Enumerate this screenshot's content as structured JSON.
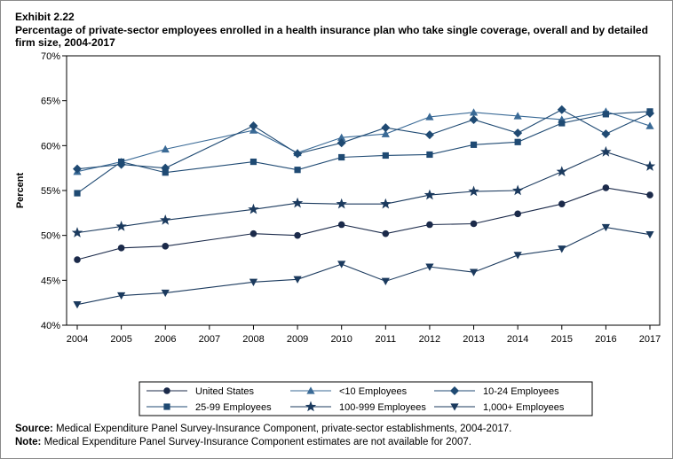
{
  "exhibit": "Exhibit 2.22",
  "notes": {
    "source_label": "Source:",
    "source_text": "Medical Expenditure Panel Survey-Insurance Component, private-sector establishments, 2004-2017.",
    "note_label": "Note:",
    "note_text": "Medical Expenditure Panel Survey-Insurance Component estimates are not available for 2007."
  },
  "chart_data": {
    "type": "line",
    "title": "Percentage of private-sector employees enrolled in a health insurance plan who take single coverage, overall and by detailed firm size, 2004-2017",
    "xlabel": "",
    "ylabel": "Percent",
    "x": [
      "2004",
      "2005",
      "2006",
      "2007",
      "2008",
      "2009",
      "2010",
      "2011",
      "2012",
      "2013",
      "2014",
      "2015",
      "2016",
      "2017"
    ],
    "ylim": [
      40,
      70
    ],
    "yticks": [
      "40%",
      "45%",
      "50%",
      "55%",
      "60%",
      "65%",
      "70%"
    ],
    "grid": false,
    "legend_position": "bottom",
    "series": [
      {
        "name": "United States",
        "marker": "circle",
        "color": "#1b2a4a",
        "values": [
          47.3,
          48.6,
          48.8,
          null,
          50.2,
          50.0,
          51.2,
          50.2,
          51.2,
          51.3,
          52.4,
          53.5,
          55.3,
          54.5
        ]
      },
      {
        "name": "<10 Employees",
        "marker": "triangle",
        "color": "#3a6a96",
        "values": [
          57.1,
          58.2,
          59.6,
          null,
          61.7,
          59.2,
          60.9,
          61.3,
          63.2,
          63.7,
          63.3,
          62.9,
          63.8,
          62.2
        ]
      },
      {
        "name": "10-24 Employees",
        "marker": "diamond",
        "color": "#1f4a73",
        "values": [
          57.4,
          57.9,
          57.5,
          null,
          62.2,
          59.1,
          60.3,
          62.0,
          61.2,
          62.9,
          61.4,
          64.0,
          61.3,
          63.6
        ]
      },
      {
        "name": "25-99 Employees",
        "marker": "square",
        "color": "#1f4a73",
        "values": [
          54.7,
          58.2,
          57.0,
          null,
          58.2,
          57.3,
          58.7,
          58.9,
          59.0,
          60.1,
          60.4,
          62.5,
          63.5,
          63.8
        ]
      },
      {
        "name": "100-999 Employees",
        "marker": "star",
        "color": "#1b3a5e",
        "values": [
          50.3,
          51.0,
          51.7,
          null,
          52.9,
          53.6,
          53.5,
          53.5,
          54.5,
          54.9,
          55.0,
          57.1,
          59.3,
          57.7
        ]
      },
      {
        "name": "1,000+ Employees",
        "marker": "triangle-down",
        "color": "#1b3a5e",
        "values": [
          42.3,
          43.3,
          43.6,
          null,
          44.8,
          45.1,
          46.8,
          44.9,
          46.5,
          45.9,
          47.8,
          48.5,
          50.9,
          50.1
        ]
      }
    ]
  }
}
